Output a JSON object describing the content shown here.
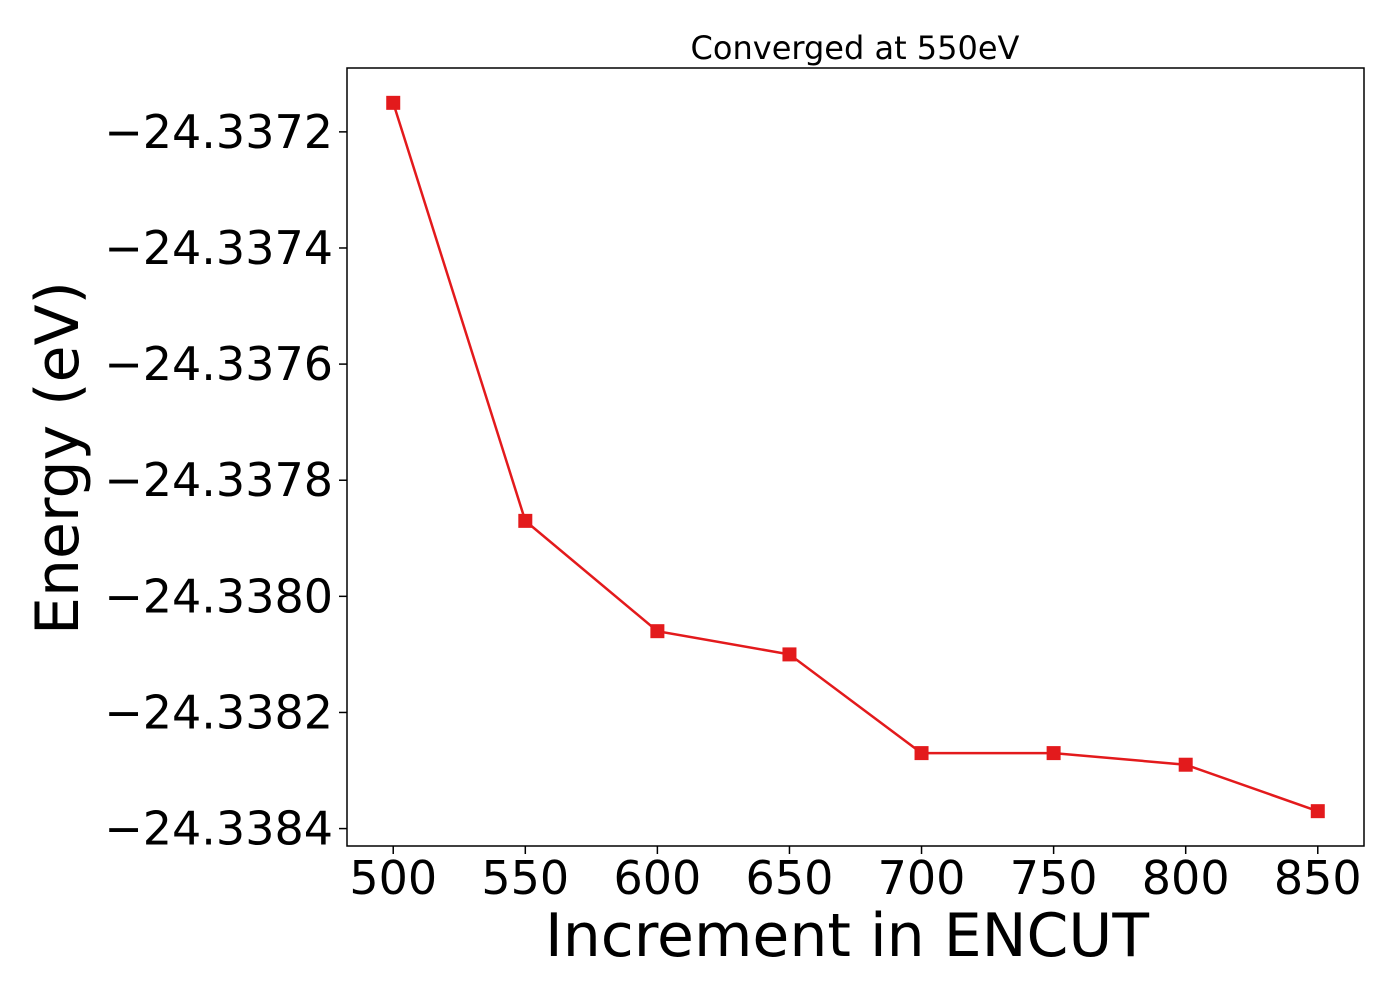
{
  "chart_data": {
    "type": "line",
    "title": "Converged at 550eV",
    "xlabel": "Increment in ENCUT",
    "ylabel": "Energy (eV)",
    "x": [
      500,
      550,
      600,
      650,
      700,
      750,
      800,
      850
    ],
    "series": [
      {
        "values": [
          -24.33715,
          -24.33787,
          -24.33806,
          -24.3381,
          -24.33827,
          -24.33827,
          -24.33829,
          -24.33837
        ],
        "color": "#e31a1c",
        "marker": "square"
      }
    ],
    "xticks": [
      500,
      550,
      600,
      650,
      700,
      750,
      800,
      850
    ],
    "xtick_labels": [
      "500",
      "550",
      "600",
      "650",
      "700",
      "750",
      "800",
      "850"
    ],
    "yticks": [
      -24.3372,
      -24.3374,
      -24.3376,
      -24.3378,
      -24.338,
      -24.3382,
      -24.3384
    ],
    "ytick_labels": [
      "−24.3372",
      "−24.3374",
      "−24.3376",
      "−24.3378",
      "−24.3380",
      "−24.3382",
      "−24.3384"
    ],
    "xlim": [
      482.5,
      867.5
    ],
    "ylim": [
      -24.33843,
      -24.33709
    ],
    "grid": false,
    "legend": "none"
  }
}
